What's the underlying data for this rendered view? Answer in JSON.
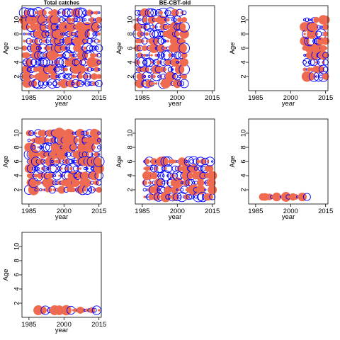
{
  "figure": {
    "background": "#ffffff"
  },
  "colors": {
    "positive": "#EE6A50",
    "negative": "#0000FF"
  },
  "chart_data": [
    {
      "type": "scatter",
      "subtype": "bubble residual plot",
      "title": "Total catches",
      "xlabel": "year",
      "ylabel": "Age",
      "xlim": [
        1982,
        2016
      ],
      "ylim": [
        0,
        12
      ],
      "xticks": [
        1985,
        2000,
        2015
      ],
      "yticks": [
        2,
        4,
        6,
        8,
        10
      ],
      "x_start": 1983,
      "x_end": 2015,
      "ages": [
        1,
        11
      ],
      "density": 1,
      "seed": 11,
      "pattern": "mixed",
      "max_size": 1
    },
    {
      "type": "scatter",
      "subtype": "bubble residual plot",
      "title": "BE-CBT-old",
      "xlabel": "year",
      "ylabel": "Age",
      "xlim": [
        1982,
        2016
      ],
      "ylim": [
        0,
        12
      ],
      "xticks": [
        1985,
        2000,
        2015
      ],
      "yticks": [
        2,
        4,
        6,
        8,
        10
      ],
      "x_start": 1983,
      "x_end": 2003,
      "ages": [
        1,
        11
      ],
      "density": 0.95,
      "seed": 23,
      "pattern": "mixed",
      "max_size": 1
    },
    {
      "type": "scatter",
      "subtype": "bubble residual plot",
      "title": "",
      "xlabel": "year",
      "ylabel": "Age",
      "xlim": [
        1982,
        2016
      ],
      "ylim": [
        0,
        12
      ],
      "xticks": [
        1985,
        2000,
        2015
      ],
      "yticks": [
        2,
        4,
        6,
        8,
        10
      ],
      "x_start": 2006,
      "x_end": 2015,
      "ages": [
        2,
        10
      ],
      "density": 1,
      "seed": 37,
      "pattern": "mixed",
      "max_size": 1
    },
    {
      "type": "scatter",
      "subtype": "bubble residual plot",
      "title": "",
      "xlabel": "year",
      "ylabel": "Age",
      "xlim": [
        1982,
        2016
      ],
      "ylim": [
        0,
        12
      ],
      "xticks": [
        1985,
        2000,
        2015
      ],
      "yticks": [
        2,
        4,
        6,
        8,
        10
      ],
      "x_start": 1985,
      "x_end": 2015,
      "ages": [
        2,
        10
      ],
      "density": 1,
      "seed": 41,
      "pattern": "mixed",
      "max_size": 1
    },
    {
      "type": "scatter",
      "subtype": "bubble residual plot",
      "title": "",
      "xlabel": "year",
      "ylabel": "Age",
      "xlim": [
        1982,
        2016
      ],
      "ylim": [
        0,
        12
      ],
      "xticks": [
        1985,
        2000,
        2015
      ],
      "yticks": [
        2,
        4,
        6,
        8,
        10
      ],
      "x_start": 1986,
      "x_end": 2015,
      "ages": [
        1,
        6
      ],
      "density": 0.95,
      "seed": 53,
      "pattern": "mixed",
      "max_size": 1
    },
    {
      "type": "scatter",
      "subtype": "bubble residual plot",
      "title": "",
      "xlabel": "year",
      "ylabel": "Age",
      "xlim": [
        1982,
        2016
      ],
      "ylim": [
        0,
        12
      ],
      "xticks": [
        1985,
        2000,
        2015
      ],
      "yticks": [
        2,
        4,
        6,
        8,
        10
      ],
      "x_start": 1988,
      "x_end": 2007,
      "ages": [
        1,
        1
      ],
      "density": 1,
      "seed": 67,
      "pattern": "mixed",
      "max_size": 1
    },
    {
      "type": "scatter",
      "subtype": "bubble residual plot",
      "title": "",
      "xlabel": "year",
      "ylabel": "Age",
      "xlim": [
        1982,
        2016
      ],
      "ylim": [
        0,
        12
      ],
      "xticks": [
        1985,
        2000,
        2015
      ],
      "yticks": [
        2,
        4,
        6,
        8,
        10
      ],
      "x_start": 1989,
      "x_end": 2015,
      "ages": [
        1,
        1
      ],
      "density": 1,
      "seed": 79,
      "pattern": "mixed",
      "max_size": 1
    }
  ]
}
